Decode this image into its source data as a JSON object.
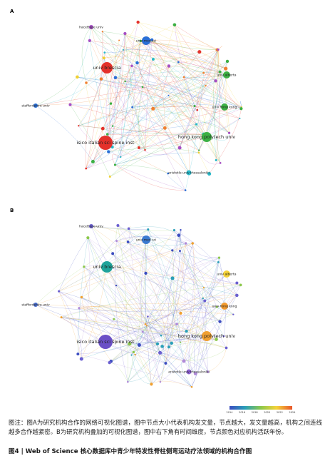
{
  "panels": [
    {
      "label": "A"
    },
    {
      "label": "B"
    }
  ],
  "nodes": [
    "univ brescia",
    "univ med sci",
    "isico italian sci spine inst",
    "hong kong polytech univ",
    "univ hong kong",
    "univ alberta",
    "staffordshire univ",
    "aristotle univ thessaloniki",
    "hacettepe univ"
  ],
  "legend": {
    "years": [
      "2014",
      "2016",
      "2018",
      "2020",
      "2022",
      "2024"
    ]
  },
  "caption": "图注：图A为研究机构合作的网络可视化图谱，图中节点大小代表机构发文量，节点越大，发文量越高，机构之间连线越多合作越紧密。B为研究机构叠加的可视化图谱，图中右下角有时间维度，节点颜色对应机构活跃年份。",
  "title": "图4 | Web of Science 核心数据库中青少年特发性脊柱侧弯运动疗法领域的机构合作图"
}
